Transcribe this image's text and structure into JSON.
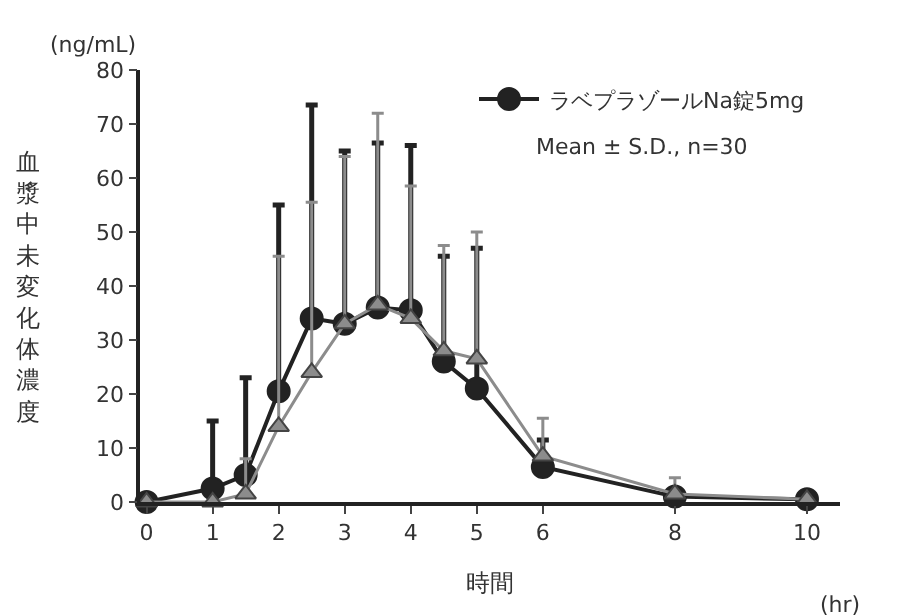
{
  "chart_data": {
    "type": "line",
    "ylabel": "血漿中未変化体濃度",
    "xlabel": "時間",
    "annotations": [
      "(ng/mL)",
      "(hr)",
      "Mean ± S.D., n=30"
    ],
    "x": [
      0,
      1,
      1.5,
      2,
      2.5,
      3,
      3.5,
      4,
      4.5,
      5,
      6,
      8,
      10
    ],
    "series": [
      {
        "name": "ラベプラゾールNa錠5mg",
        "color": "#222222",
        "marker": "circle",
        "values": [
          0,
          2.5,
          5,
          20.5,
          34,
          33,
          36,
          35.5,
          26,
          21,
          6.5,
          1,
          0.5
        ],
        "errors": [
          null,
          [
            2.5,
            15
          ],
          [
            5,
            23
          ],
          [
            20.5,
            55
          ],
          [
            34,
            73.5
          ],
          [
            33,
            65
          ],
          [
            36,
            66.5
          ],
          [
            35.5,
            66
          ],
          [
            26,
            45.5
          ],
          [
            21,
            47
          ],
          [
            6.5,
            11.5
          ],
          null,
          null
        ]
      },
      {
        "color": "#8c8c8c",
        "marker": "triangle",
        "values": [
          0,
          0,
          1.5,
          14,
          24,
          33,
          36.5,
          34,
          28,
          26.5,
          8.5,
          1.5,
          0.5
        ],
        "errors": [
          null,
          null,
          [
            1.5,
            8
          ],
          [
            14,
            45.5
          ],
          [
            24,
            55.5
          ],
          [
            33,
            64
          ],
          [
            36.5,
            72
          ],
          [
            34,
            58.5
          ],
          [
            28,
            47.5
          ],
          [
            26.5,
            50
          ],
          [
            8.5,
            15.5
          ],
          [
            1.5,
            4.5
          ],
          null
        ]
      }
    ],
    "xlim": [
      -0.1,
      10.5
    ],
    "xticks": [
      0,
      1,
      2,
      3,
      4,
      5,
      6,
      8,
      10
    ],
    "ylim": [
      0,
      80
    ],
    "yticks": [
      0,
      10,
      20,
      30,
      40,
      50,
      60,
      70,
      80
    ],
    "legend": "top right",
    "line_style": "solid"
  }
}
